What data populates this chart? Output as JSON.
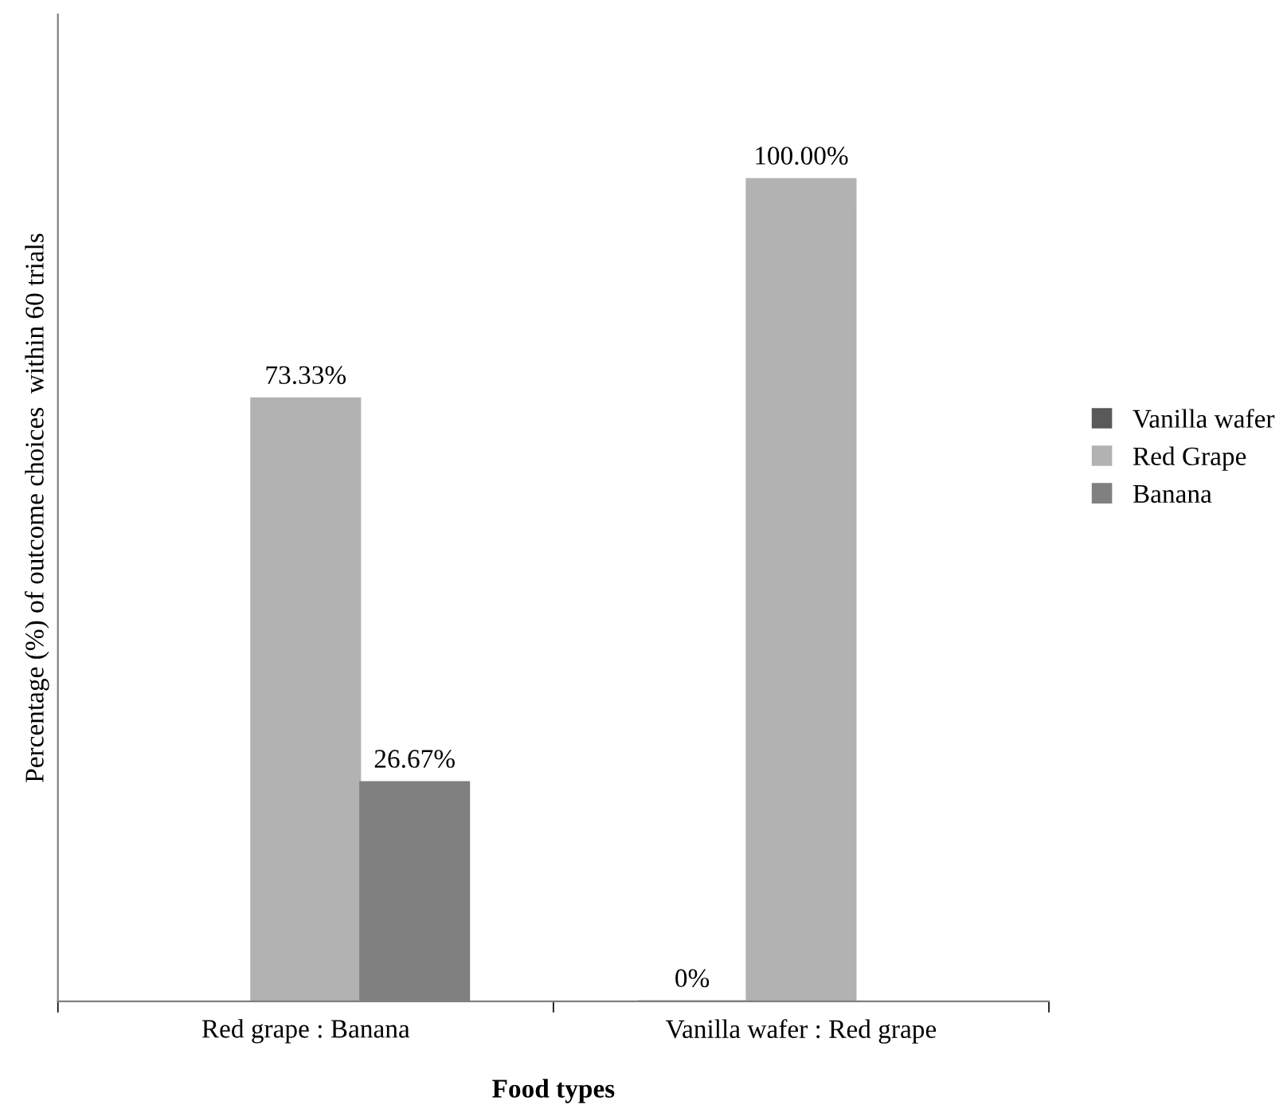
{
  "chart_data": {
    "type": "bar",
    "xlabel": "Food types",
    "ylabel": "Percentage (%) of outcome choices  within 60 trials",
    "categories": [
      "Red grape : Banana",
      "Vanilla wafer : Red grape"
    ],
    "series": [
      {
        "name": "Vanilla wafer",
        "color": "#595959",
        "values": [
          null,
          0
        ],
        "value_labels": [
          null,
          "0%"
        ]
      },
      {
        "name": "Red Grape",
        "color": "#b2b2b2",
        "values": [
          73.33,
          100
        ],
        "value_labels": [
          "73.33%",
          "100.00%"
        ]
      },
      {
        "name": "Banana",
        "color": "#808080",
        "values": [
          26.67,
          null
        ],
        "value_labels": [
          "26.67%",
          null
        ]
      }
    ],
    "legend": "right",
    "tick_labels": "x",
    "grid": false
  }
}
